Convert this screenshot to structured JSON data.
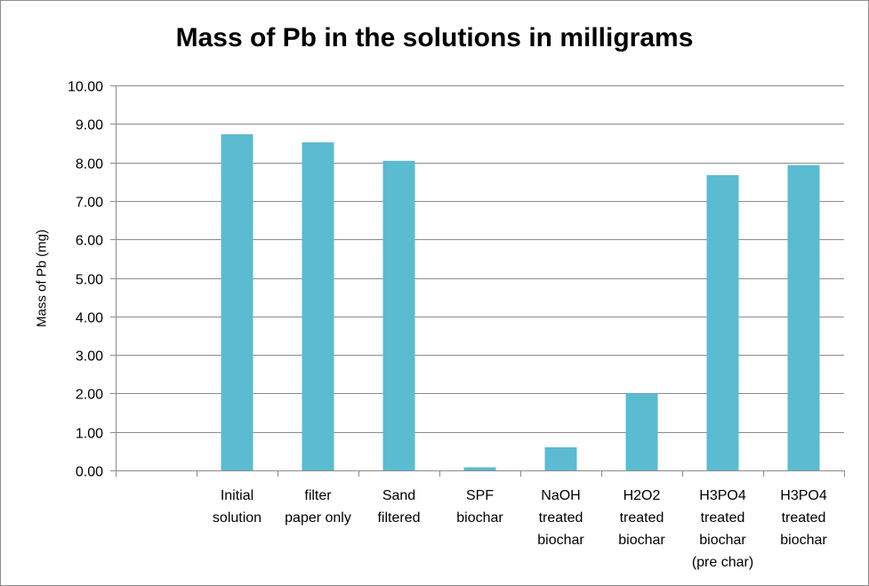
{
  "chart_data": {
    "type": "bar",
    "title": "Mass of Pb in the solutions in milligrams",
    "xlabel": "",
    "ylabel": "Mass of Pb (mg)",
    "ylim": [
      0,
      10
    ],
    "yticks": [
      "0.00",
      "1.00",
      "2.00",
      "3.00",
      "4.00",
      "5.00",
      "6.00",
      "7.00",
      "8.00",
      "9.00",
      "10.00"
    ],
    "grid": true,
    "categories": [
      [],
      [
        "Initial",
        "solution"
      ],
      [
        "filter",
        "paper only"
      ],
      [
        "Sand",
        "filtered"
      ],
      [
        "SPF",
        "biochar"
      ],
      [
        "NaOH",
        "treated",
        "biochar"
      ],
      [
        "H2O2",
        "treated",
        "biochar"
      ],
      [
        "H3PO4",
        "treated",
        "biochar",
        "(pre char)"
      ],
      [
        "H3PO4",
        "treated",
        "biochar"
      ]
    ],
    "values": [
      null,
      8.73,
      8.52,
      8.04,
      0.08,
      0.6,
      2.0,
      7.67,
      7.93
    ],
    "bar_color": "#5bbbd1"
  }
}
